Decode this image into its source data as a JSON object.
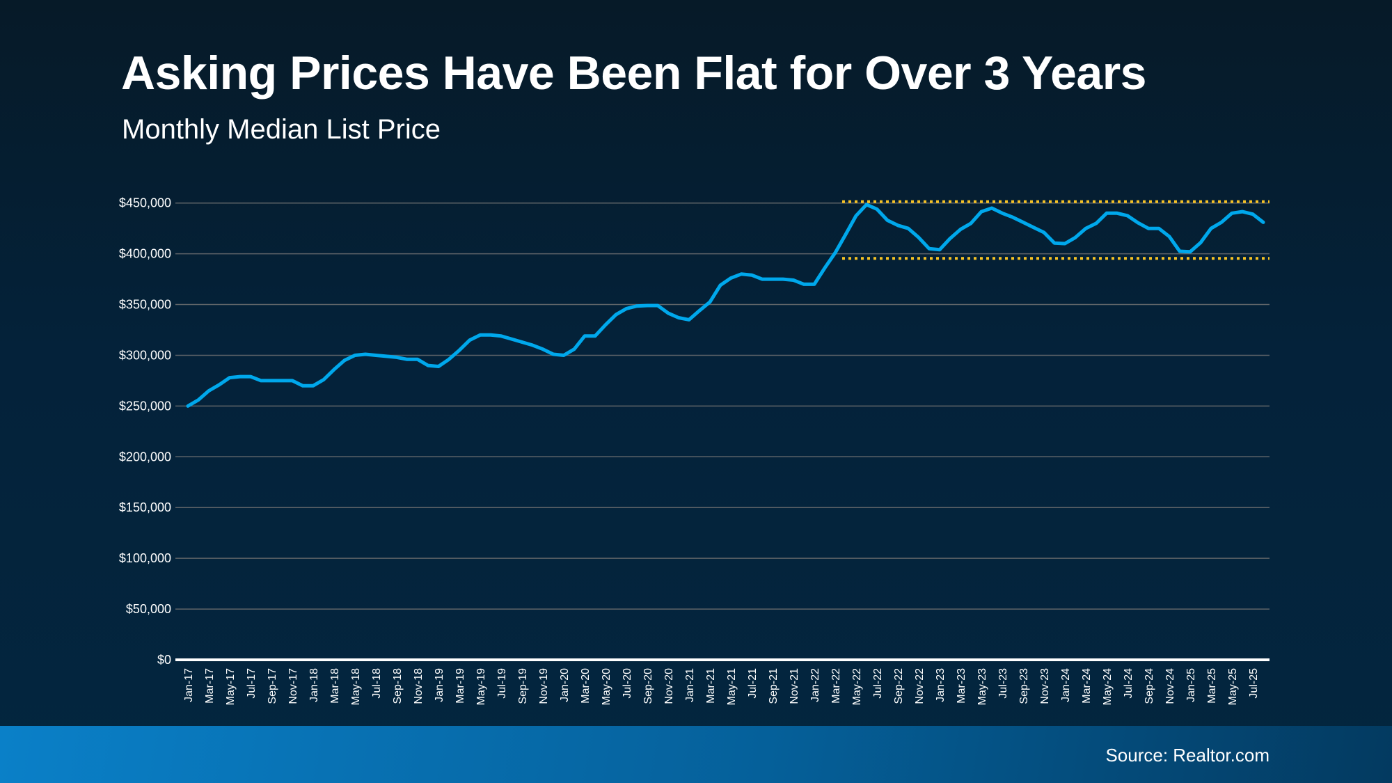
{
  "header": {
    "title": "Asking Prices Have Been Flat for Over 3 Years",
    "subtitle": "Monthly Median List Price"
  },
  "footer": {
    "source": "Source: Realtor.com"
  },
  "colors": {
    "line": "#00a8ec",
    "band": "#f5c225",
    "grid": "#5f6468",
    "axis": "#ffffff"
  },
  "chart_data": {
    "type": "line",
    "title": "Asking Prices Have Been Flat for Over 3 Years",
    "subtitle": "Monthly Median List Price",
    "xlabel": "",
    "ylabel": "",
    "ylim": [
      0,
      450000
    ],
    "grid": true,
    "y_ticks": [
      0,
      50000,
      100000,
      150000,
      200000,
      250000,
      300000,
      350000,
      400000,
      450000
    ],
    "y_tick_labels": [
      "$0",
      "$50,000",
      "$100,000",
      "$150,000",
      "$200,000",
      "$250,000",
      "$300,000",
      "$350,000",
      "$400,000",
      "$450,000"
    ],
    "x_tick_labels": [
      "Jan-17",
      "Mar-17",
      "May-17",
      "Jul-17",
      "Sep-17",
      "Nov-17",
      "Jan-18",
      "Mar-18",
      "May-18",
      "Jul-18",
      "Sep-18",
      "Nov-18",
      "Jan-19",
      "Mar-19",
      "May-19",
      "Jul-19",
      "Sep-19",
      "Nov-19",
      "Jan-20",
      "Mar-20",
      "May-20",
      "Jul-20",
      "Sep-20",
      "Nov-20",
      "Jan-21",
      "Mar-21",
      "May-21",
      "Jul-21",
      "Sep-21",
      "Nov-21",
      "Jan-22",
      "Mar-22",
      "May-22",
      "Jul-22",
      "Sep-22",
      "Nov-22",
      "Jan-23",
      "Mar-23",
      "May-23",
      "Jul-23",
      "Sep-23",
      "Nov-23",
      "Jan-24",
      "Mar-24",
      "May-24",
      "Jul-24",
      "Sep-24",
      "Nov-24",
      "Jan-25",
      "Mar-25",
      "May-25",
      "Jul-25"
    ],
    "x_start": "Jan-17",
    "x_end": "Aug-25",
    "series": [
      {
        "values": [
          250000,
          256000,
          265000,
          271000,
          278000,
          279000,
          279000,
          275000,
          275000,
          275000,
          275000,
          270000,
          270000,
          276000,
          286000,
          295000,
          300000,
          301000,
          300000,
          299000,
          298000,
          296000,
          296000,
          290000,
          289000,
          296000,
          305000,
          315000,
          320000,
          320000,
          319000,
          316000,
          313000,
          310000,
          306000,
          301000,
          300000,
          306000,
          319000,
          319000,
          330000,
          340000,
          346000,
          348500,
          349000,
          349000,
          341500,
          337000,
          335000,
          344000,
          352500,
          369000,
          376000,
          380000,
          379000,
          375000,
          375000,
          375000,
          374000,
          370000,
          370000,
          386000,
          401000,
          419000,
          437500,
          448500,
          444000,
          433000,
          428000,
          425000,
          416000,
          405000,
          404000,
          415000,
          424000,
          430000,
          441500,
          445000,
          440000,
          436000,
          431000,
          426000,
          421000,
          410500,
          410000,
          416000,
          425000,
          430000,
          440000,
          440000,
          437500,
          430500,
          425000,
          425000,
          417000,
          402500,
          402000,
          411000,
          425000,
          431000,
          440000,
          441500,
          439000,
          431000
        ]
      }
    ],
    "reference_lines": [
      {
        "value": 450000,
        "from": "Apr-22",
        "to": "Aug-25",
        "style": "dotted"
      },
      {
        "value": 397500,
        "from": "Apr-22",
        "to": "Aug-25",
        "style": "dotted"
      }
    ]
  }
}
